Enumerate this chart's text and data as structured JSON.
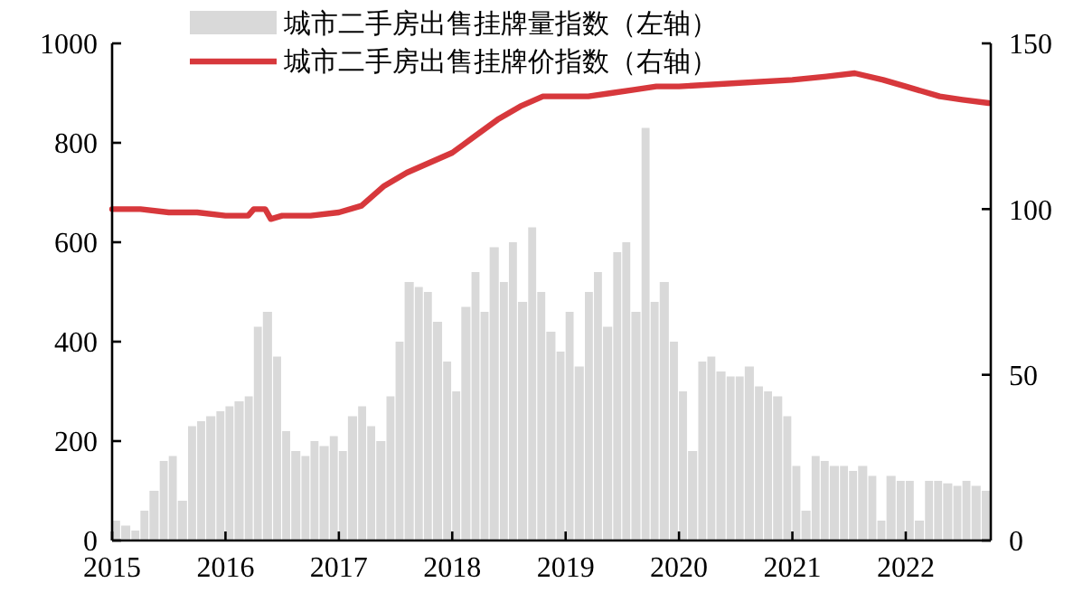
{
  "chart_data": {
    "type": "bar",
    "xlim": [
      2015,
      2022.75
    ],
    "xticks": [
      2015,
      2016,
      2017,
      2018,
      2019,
      2020,
      2021,
      2022
    ],
    "ylim": [
      0,
      1000
    ],
    "yticks": [
      0,
      200,
      400,
      600,
      800,
      1000
    ],
    "y2lim": [
      0,
      150
    ],
    "y2ticks": [
      0,
      50,
      100,
      150
    ],
    "legend": "top left",
    "grid": false,
    "series": [
      {
        "name": "城市二手房出售挂牌量指数（左轴）",
        "color": "#d9d9d9",
        "x": [
          2015,
          2015.08,
          2015.17,
          2015.25,
          2015.33,
          2015.42,
          2015.5,
          2015.58,
          2015.67,
          2015.75,
          2015.83,
          2015.92,
          2016,
          2016.08,
          2016.17,
          2016.25,
          2016.33,
          2016.42,
          2016.5,
          2016.58,
          2016.67,
          2016.75,
          2016.83,
          2016.92,
          2017,
          2017.08,
          2017.17,
          2017.25,
          2017.33,
          2017.42,
          2017.5,
          2017.58,
          2017.67,
          2017.75,
          2017.83,
          2017.92,
          2018,
          2018.08,
          2018.17,
          2018.25,
          2018.33,
          2018.42,
          2018.5,
          2018.58,
          2018.67,
          2018.75,
          2018.83,
          2018.92,
          2019,
          2019.08,
          2019.17,
          2019.25,
          2019.33,
          2019.42,
          2019.5,
          2019.58,
          2019.67,
          2019.75,
          2019.83,
          2019.92,
          2020,
          2020.08,
          2020.17,
          2020.25,
          2020.33,
          2020.42,
          2020.5,
          2020.58,
          2020.67,
          2020.75,
          2020.83,
          2020.92,
          2021,
          2021.08,
          2021.17,
          2021.25,
          2021.33,
          2021.42,
          2021.5,
          2021.58,
          2021.67,
          2021.75,
          2021.83,
          2021.92,
          2022,
          2022.08,
          2022.17,
          2022.25,
          2022.33,
          2022.42,
          2022.5,
          2022.58,
          2022.67
        ],
        "values": [
          40,
          30,
          20,
          60,
          100,
          160,
          170,
          80,
          230,
          240,
          250,
          260,
          270,
          280,
          290,
          430,
          460,
          370,
          220,
          180,
          170,
          200,
          190,
          210,
          180,
          250,
          270,
          230,
          200,
          290,
          400,
          520,
          510,
          500,
          440,
          360,
          300,
          470,
          540,
          460,
          590,
          520,
          600,
          480,
          630,
          500,
          420,
          380,
          460,
          350,
          500,
          540,
          430,
          580,
          600,
          460,
          830,
          480,
          520,
          400,
          300,
          180,
          360,
          370,
          340,
          330,
          330,
          350,
          310,
          300,
          290,
          250,
          150,
          60,
          170,
          160,
          150,
          150,
          140,
          150,
          130,
          40,
          130,
          120,
          120,
          40,
          120,
          120,
          115,
          110,
          120,
          110,
          100
        ]
      },
      {
        "name": "城市二手房出售挂牌价指数（右轴）",
        "type": "line",
        "axis": "y2",
        "color": "#d7383c",
        "x": [
          2015,
          2015.25,
          2015.5,
          2015.75,
          2016,
          2016.2,
          2016.25,
          2016.35,
          2016.4,
          2016.5,
          2016.75,
          2017,
          2017.2,
          2017.4,
          2017.6,
          2017.8,
          2018,
          2018.2,
          2018.4,
          2018.6,
          2018.8,
          2019,
          2019.2,
          2019.4,
          2019.6,
          2019.8,
          2020,
          2020.5,
          2021,
          2021.3,
          2021.55,
          2021.8,
          2022,
          2022.3,
          2022.5,
          2022.73
        ],
        "values": [
          100,
          100,
          99,
          99,
          98,
          98,
          100,
          100,
          97,
          98,
          98,
          99,
          101,
          107,
          111,
          114,
          117,
          122,
          127,
          131,
          134,
          134,
          134,
          135,
          136,
          137,
          137,
          138,
          139,
          140,
          141,
          139,
          137,
          134,
          133,
          132
        ]
      }
    ]
  }
}
